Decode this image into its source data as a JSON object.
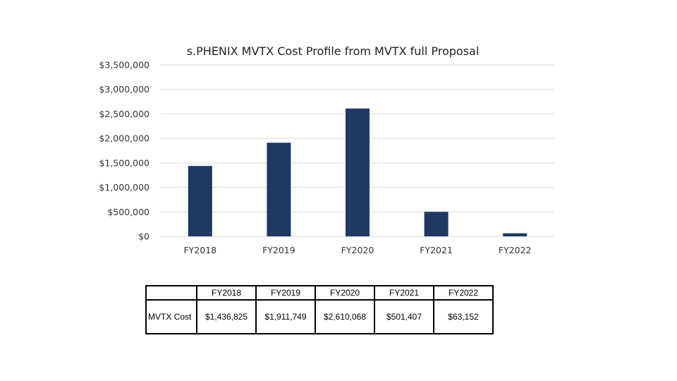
{
  "chart_data": {
    "type": "bar",
    "title": "s.PHENIX MVTX Cost Profile from MVTX full Proposal",
    "categories": [
      "FY2018",
      "FY2019",
      "FY2020",
      "FY2021",
      "FY2022"
    ],
    "series": [
      {
        "values": [
          1436825,
          1911749,
          2610068,
          501407,
          63152
        ]
      }
    ],
    "ylim": [
      0,
      3500000
    ],
    "yticks": [
      0,
      500000,
      1000000,
      1500000,
      2000000,
      2500000,
      3000000,
      3500000
    ],
    "ytick_labels": [
      "$0",
      "$500,000",
      "$1,000,000",
      "$1,500,000",
      "$2,000,000",
      "$2,500,000",
      "$3,000,000",
      "$3,500,000"
    ],
    "xlabel": "",
    "ylabel": "",
    "grid": true,
    "legend": "none",
    "bar_color": "#203864"
  },
  "table": {
    "headers": [
      "",
      "FY2018",
      "FY2019",
      "FY2020",
      "FY2021",
      "FY2022"
    ],
    "row_label": "MVTX Cost",
    "values": [
      "$1,436,825",
      "$1,911,749",
      "$2,610,068",
      "$501,407",
      "$63,152"
    ]
  }
}
